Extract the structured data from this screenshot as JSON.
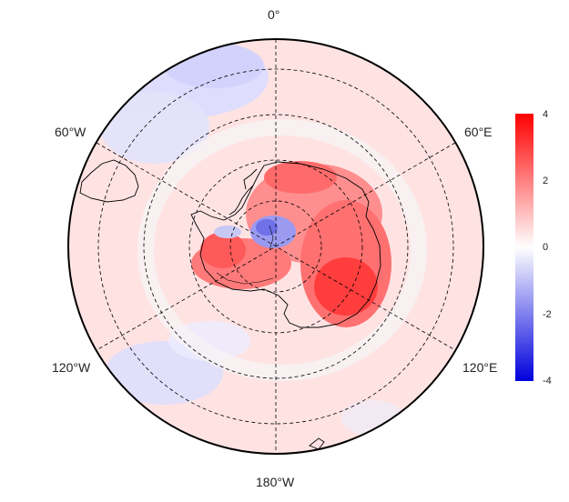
{
  "map": {
    "projection": "south polar stereographic",
    "lon_labels": {
      "top": "0°",
      "upper_left": "60°W",
      "upper_right": "60°E",
      "lower_left": "120°W",
      "lower_right": "120°E",
      "bottom": "180°W"
    },
    "graticule_style": "dashed",
    "coastline_color": "#000000",
    "colorscale": {
      "low": "#0000dd",
      "mid": "#ffffff",
      "high": "#ff0000"
    }
  },
  "colorbar": {
    "ticks": [
      "4",
      "2",
      "0",
      "-2",
      "-4"
    ],
    "min": -4,
    "max": 4
  }
}
